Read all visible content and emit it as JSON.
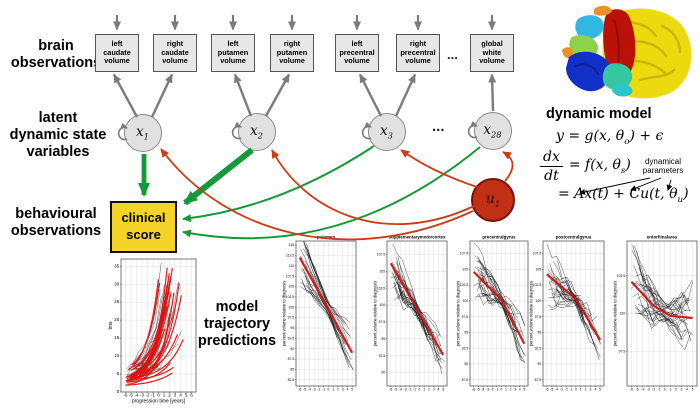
{
  "row_labels": {
    "brain": "brain\nobservations",
    "latent": "latent\ndynamic state\nvariables",
    "behavioural": "behavioural\nobservations",
    "predictions": "model\ntrajectory\npredictions"
  },
  "observation_boxes": [
    "left\ncaudate\nvolume",
    "right\ncaudate\nvolume",
    "left\nputamen\nvolume",
    "right\nputamen\nvolume",
    "left\nprecentral\nvolume",
    "right\nprecentral\nvolume",
    "global\nwhite\nvolume"
  ],
  "ellipsis_boxes": "...",
  "ellipsis_nodes": "...",
  "state_nodes": [
    {
      "label": [
        {
          "t": "x"
        },
        {
          "s": "1"
        }
      ]
    },
    {
      "label": [
        {
          "t": "x"
        },
        {
          "s": "2"
        }
      ]
    },
    {
      "label": [
        {
          "t": "x"
        },
        {
          "s": "3"
        }
      ]
    },
    {
      "label": [
        {
          "t": "x"
        },
        {
          "s": "28"
        }
      ]
    }
  ],
  "input_node": {
    "label": [
      {
        "t": "u"
      },
      {
        "s": "1"
      }
    ]
  },
  "clinical_box_label": "clinical\nscore",
  "dynamic_model": {
    "title": "dynamic model",
    "eq1": [
      {
        "t": "y = g(x, θ"
      },
      {
        "s": "o"
      },
      {
        "t": ") + ϵ"
      }
    ],
    "frac_num": "dx",
    "frac_den": "dt",
    "eq2_rhs": [
      {
        "t": "= f(x, θ"
      },
      {
        "s": "s"
      },
      {
        "t": ")"
      }
    ],
    "annotation": "dynamical parameters",
    "eq3": [
      {
        "t": "= Ax(t) + Cu(t, θ"
      },
      {
        "s": "u"
      },
      {
        "t": ")"
      }
    ]
  },
  "colors": {
    "arrow_gray": "#7b7b7b",
    "arrow_green": "#149a38",
    "arrow_red": "#cc3b16",
    "clinical_yellow": "#f6d327",
    "input_red": "#c13014",
    "node_gray": "#e1e1e1",
    "trend_red": "#d41010",
    "spaghetti_black": "#1c1c1c"
  },
  "chart_data": [
    {
      "id": "clinical-score-trajectories",
      "type": "line",
      "title": "",
      "xlabel": "progression time [years]",
      "ylabel": "tms",
      "xlim": [
        -6.8,
        6.8
      ],
      "ylim": [
        0,
        37
      ],
      "xticks": [
        -6,
        -5,
        -4,
        -3,
        -2,
        -1,
        0,
        1,
        2,
        3,
        4,
        5,
        6
      ],
      "yticks": [
        0,
        5,
        10,
        15,
        20,
        25,
        30,
        35
      ],
      "style": "rising",
      "grid": true,
      "series": [
        {
          "name": "observed individual trajectories",
          "color": "#1c1c1c",
          "count": 22
        },
        {
          "name": "model trajectory predictions",
          "color": "#dd1111",
          "count": 26
        }
      ]
    },
    {
      "id": "putamen",
      "type": "line",
      "title": "putamen",
      "xlabel": "",
      "ylabel": "percent volume relative to diagnosis",
      "xlim": [
        -6.8,
        5.8
      ],
      "ylim": [
        81,
        116
      ],
      "xticks": [
        -6,
        -5,
        -4,
        -3,
        -2,
        -1,
        0,
        1,
        2,
        3,
        4,
        5
      ],
      "yticks": [
        115,
        112.5,
        110,
        107.5,
        105,
        102.5,
        100,
        97.5,
        95,
        92.5,
        90,
        87.5,
        85,
        82.5
      ],
      "style": "falling",
      "grid": true,
      "red_trend": [
        [
          -6,
          112
        ],
        [
          5,
          89
        ]
      ],
      "noise": 2.0,
      "spread": 5.5,
      "series": [
        {
          "name": "observed individuals",
          "color": "#1c1c1c",
          "count": 26
        },
        {
          "name": "model fit",
          "color": "#d41010",
          "count": 1
        }
      ]
    },
    {
      "id": "supplementarymotorcortex",
      "type": "line",
      "title": "supplementarymotorcortex",
      "xlabel": "",
      "ylabel": "percent volume relative to diagnosis",
      "xlim": [
        -6.8,
        5.8
      ],
      "ylim": [
        88,
        109.5
      ],
      "xticks": [
        -6,
        -5,
        -4,
        -3,
        -2,
        -1,
        0,
        1,
        2,
        3,
        4,
        5
      ],
      "yticks": [
        107.5,
        105,
        102.5,
        100,
        97.5,
        95,
        92.5,
        90
      ],
      "style": "falling",
      "grid": true,
      "red_trend": [
        [
          -6,
          106.2
        ],
        [
          5,
          92.6
        ]
      ],
      "noise": 2.6,
      "spread": 3.2,
      "series": [
        {
          "name": "observed individuals",
          "color": "#1c1c1c",
          "count": 28
        },
        {
          "name": "model fit",
          "color": "#d41010",
          "count": 1
        }
      ]
    },
    {
      "id": "precentralgyrus",
      "type": "line",
      "title": "precentralgyrus",
      "xlabel": "",
      "ylabel": "percent volume relative to diagnosis",
      "xlim": [
        -6.8,
        5.8
      ],
      "ylim": [
        86.5,
        109.5
      ],
      "xticks": [
        -6,
        -5,
        -4,
        -3,
        -2,
        -1,
        0,
        1,
        2,
        3,
        4,
        5
      ],
      "yticks": [
        107.5,
        105,
        102.5,
        100,
        97.5,
        95,
        92.5,
        90,
        87.5
      ],
      "style": "falling",
      "grid": true,
      "red_trend": [
        [
          -6,
          104.6
        ],
        [
          0,
          100.2
        ],
        [
          5,
          93.2
        ]
      ],
      "noise": 2.6,
      "spread": 3.2,
      "series": [
        {
          "name": "observed individuals",
          "color": "#1c1c1c",
          "count": 28
        },
        {
          "name": "model fit",
          "color": "#d41010",
          "count": 1
        }
      ]
    },
    {
      "id": "postcentralgyrus",
      "type": "line",
      "title": "postcentralgyrus",
      "xlabel": "",
      "ylabel": "percent volume relative to diagnosis",
      "xlim": [
        -6.8,
        5.8
      ],
      "ylim": [
        86.5,
        109.5
      ],
      "xticks": [
        -6,
        -5,
        -4,
        -3,
        -2,
        -1,
        0,
        1,
        2,
        3,
        4,
        5
      ],
      "yticks": [
        107.5,
        105,
        102.5,
        100,
        97.5,
        95,
        92.5,
        90,
        87.5
      ],
      "style": "falling",
      "grid": true,
      "red_trend": [
        [
          -6,
          104.2
        ],
        [
          0,
          100.3
        ],
        [
          5,
          93.8
        ]
      ],
      "noise": 3.0,
      "spread": 3.4,
      "series": [
        {
          "name": "observed individuals",
          "color": "#1c1c1c",
          "count": 28
        },
        {
          "name": "model fit",
          "color": "#d41010",
          "count": 1
        }
      ]
    },
    {
      "id": "entorhinalarea",
      "type": "line",
      "title": "entorhinalarea",
      "xlabel": "",
      "ylabel": "percent volume relative to diagnosis",
      "xlim": [
        -6.8,
        5.8
      ],
      "ylim": [
        95.2,
        104.8
      ],
      "xticks": [
        -6,
        -5,
        -4,
        -3,
        -2,
        -1,
        0,
        1,
        2,
        3,
        4,
        5
      ],
      "yticks": [
        102.5,
        100,
        97.5
      ],
      "style": "falling",
      "grid": true,
      "red_trend": [
        [
          -6,
          102.1
        ],
        [
          -2,
          100.5
        ],
        [
          1,
          99.85
        ],
        [
          5,
          99.7
        ]
      ],
      "noise": 1.5,
      "spread": 1.7,
      "series": [
        {
          "name": "observed individuals",
          "color": "#1c1c1c",
          "count": 30
        },
        {
          "name": "model fit",
          "color": "#d41010",
          "count": 1
        }
      ]
    }
  ]
}
